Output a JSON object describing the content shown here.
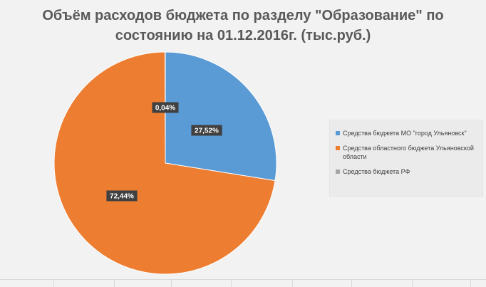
{
  "chart_data": {
    "type": "pie",
    "title": "Объём расходов бюджета по разделу \"Образование\" по состоянию на 01.12.2016г. (тыс.руб.)",
    "title_lines": [
      "Объём расходов бюджета по разделу \"Образование\" по",
      "состоянию на 01.12.2016г. (тыс.руб.)"
    ],
    "categories": [
      "Средства бюджета МО \"город Ульяновск\"",
      "Средства областного бюджета Ульяновской области",
      "Средства бюджета РФ"
    ],
    "values": [
      27.52,
      72.44,
      0.04
    ],
    "value_labels": [
      "27,52%",
      "72,44%",
      "0,04%"
    ],
    "colors": [
      "#5b9bd5",
      "#ed7d31",
      "#a5a5a5"
    ],
    "legend_position": "right",
    "start_angle_deg": 0,
    "direction": "clockwise"
  }
}
